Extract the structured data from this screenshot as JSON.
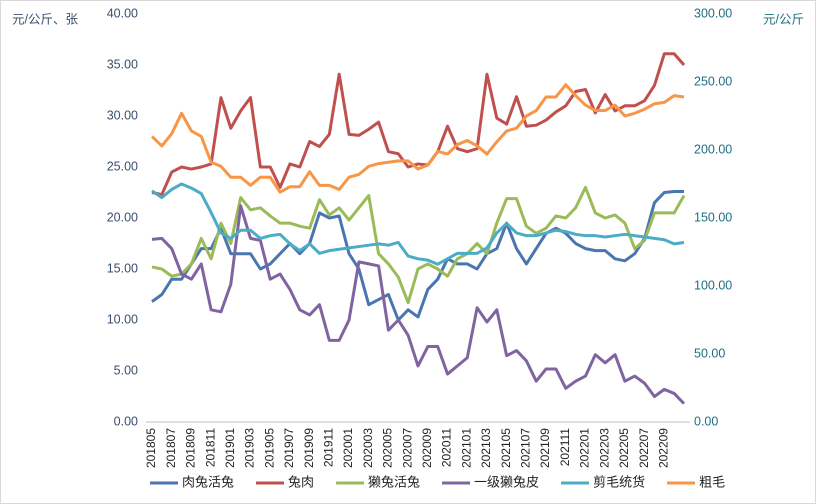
{
  "chart_data": {
    "type": "line",
    "y_label": "元/公斤、张",
    "y2_label": "元/公斤",
    "categories": [
      "201805",
      null,
      "201807",
      null,
      "201809",
      null,
      "201811",
      null,
      "201901",
      null,
      "201903",
      null,
      "201905",
      null,
      "201907",
      null,
      "201909",
      null,
      "201911",
      null,
      "202001",
      null,
      "202003",
      null,
      "202005",
      null,
      "202007",
      null,
      "202009",
      null,
      "202011",
      null,
      "202101",
      null,
      "202103",
      null,
      "202105",
      null,
      "202107",
      null,
      "202109",
      null,
      "202111",
      null,
      "202201",
      null,
      "202203",
      null,
      "202205",
      null,
      "202207",
      null,
      "202209",
      null,
      null
    ],
    "ylim": [
      0,
      40
    ],
    "yticks": [
      {
        "value": 0,
        "label": "0.00"
      },
      {
        "value": 5,
        "label": "5.00"
      },
      {
        "value": 10,
        "label": "10.00"
      },
      {
        "value": 15,
        "label": "15.00"
      },
      {
        "value": 20,
        "label": "20.00"
      },
      {
        "value": 25,
        "label": "25.00"
      },
      {
        "value": 30,
        "label": "30.00"
      },
      {
        "value": 35,
        "label": "35.00"
      },
      {
        "value": 40,
        "label": "40.00"
      }
    ],
    "y2lim": [
      0,
      300
    ],
    "y2ticks": [
      {
        "value": 0,
        "label": "0.00"
      },
      {
        "value": 50,
        "label": "50.00"
      },
      {
        "value": 100,
        "label": "100.00"
      },
      {
        "value": 150,
        "label": "150.00"
      },
      {
        "value": 200,
        "label": "200.00"
      },
      {
        "value": 250,
        "label": "250.00"
      },
      {
        "value": 300,
        "label": "300.00"
      }
    ],
    "legend": "bottom",
    "series": [
      {
        "name": "肉兔活兔",
        "color": "#4a76b0",
        "values": [
          11.8,
          12.5,
          14,
          14,
          15.5,
          17,
          17,
          19,
          16.5,
          16.5,
          16.5,
          15,
          15.5,
          16.5,
          17.5,
          16.5,
          17.5,
          20.5,
          20,
          20.2,
          16.5,
          15,
          11.5,
          12,
          12.5,
          10,
          11,
          10.3,
          13,
          14,
          16,
          15.5,
          15.5,
          15,
          16.5,
          17,
          19.5,
          17,
          15.5,
          17,
          18.5,
          19,
          18.5,
          17.5,
          17,
          16.8,
          16.8,
          16,
          15.8,
          16.5,
          18,
          21.5,
          22.5,
          22.6,
          22.6
        ]
      },
      {
        "name": "兔肉",
        "color": "#c0504d",
        "values": [
          22.5,
          22.3,
          24.5,
          25,
          24.8,
          25,
          25.3,
          31.8,
          28.8,
          30.5,
          31.8,
          25,
          25,
          23,
          25.3,
          25,
          27.5,
          27,
          28.2,
          34.1,
          28.2,
          28.1,
          28.7,
          29.4,
          26.5,
          26.3,
          25,
          25.3,
          25.2,
          26.5,
          29,
          26.8,
          26.5,
          26.8,
          34.1,
          29.8,
          29.2,
          31.9,
          29,
          29.1,
          29.6,
          30.4,
          31,
          32.4,
          32.6,
          30.3,
          32.1,
          30.5,
          31,
          31,
          31.5,
          33,
          36.1,
          36.1,
          35
        ]
      },
      {
        "name": "獭兔活兔",
        "color": "#9bbb59",
        "values": [
          15.2,
          15,
          14.3,
          14.5,
          15.5,
          18,
          16,
          19.5,
          17.5,
          22,
          20.8,
          21,
          20.2,
          19.5,
          19.5,
          19.2,
          19,
          21.8,
          20.3,
          21,
          19.8,
          21,
          22.2,
          16.5,
          15.5,
          14.2,
          11.7,
          15,
          15.5,
          15,
          14.3,
          16,
          16.5,
          17.5,
          16.5,
          19.5,
          21.9,
          21.9,
          19.2,
          18.5,
          19,
          20.2,
          20,
          21,
          23,
          20.5,
          20,
          20.3,
          19.5,
          17,
          17.8,
          20.5,
          20.5,
          20.5,
          22.2
        ]
      },
      {
        "name": "一级獭兔皮",
        "color": "#8064a2",
        "values": [
          17.9,
          18,
          17,
          14.5,
          14,
          15.5,
          11,
          10.8,
          13.5,
          21.2,
          18,
          17.8,
          14,
          14.5,
          13,
          11,
          10.5,
          11.5,
          8,
          8,
          10,
          15.7,
          15.5,
          15.3,
          9,
          10,
          8.5,
          5.5,
          7.4,
          7.4,
          4.7,
          5.5,
          6.3,
          11.2,
          9.8,
          11,
          6.5,
          7,
          6,
          4,
          5.2,
          5.2,
          3.3,
          4,
          4.5,
          6.6,
          5.8,
          6.6,
          4,
          4.5,
          3.8,
          2.5,
          3.2,
          2.8,
          1.8
        ]
      },
      {
        "name": "剪毛统货",
        "color": "#4bacc6",
        "axis": "y2",
        "values": [
          170,
          165,
          171,
          175,
          172,
          168,
          154,
          139,
          135,
          141,
          141,
          135,
          137,
          138,
          131,
          126,
          131,
          124,
          126,
          127,
          128,
          129,
          130,
          131,
          130,
          132,
          122,
          120,
          119,
          116,
          120,
          124,
          124,
          124,
          128,
          139,
          146,
          139,
          137,
          137,
          139,
          141,
          140,
          138,
          137,
          137,
          136,
          137,
          138,
          137,
          136,
          135,
          134,
          131,
          132
        ]
      },
      {
        "name": "粗毛",
        "color": "#f79646",
        "axis": "y2",
        "values": [
          210,
          203,
          212,
          227,
          214,
          210,
          191,
          188,
          180,
          180,
          174,
          180,
          180,
          169,
          173,
          173,
          184,
          174,
          174,
          171,
          180,
          182,
          188,
          190,
          191,
          192,
          192,
          186,
          189,
          199,
          197,
          204,
          207,
          203,
          197,
          206,
          214,
          216,
          225,
          229,
          239,
          239,
          248,
          240,
          233,
          229,
          229,
          233,
          225,
          227,
          230,
          234,
          235,
          240,
          239
        ]
      }
    ]
  }
}
